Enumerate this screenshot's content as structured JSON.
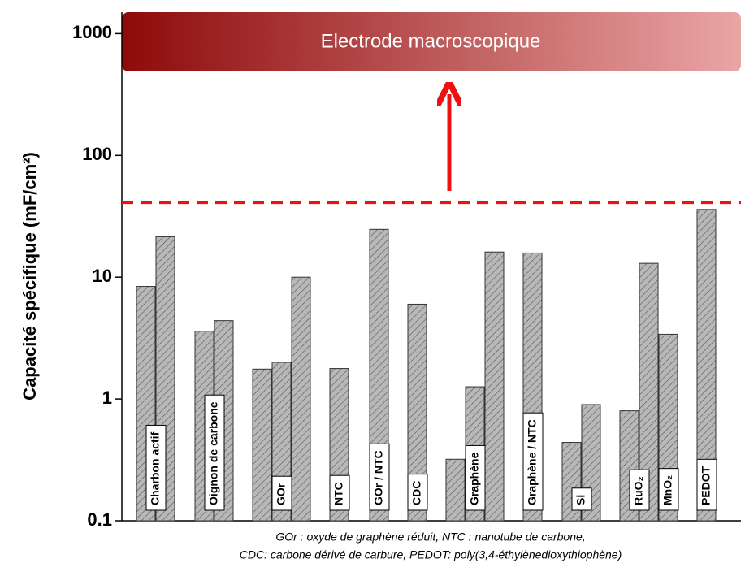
{
  "chart_data": {
    "type": "bar",
    "annotation": "Electrode macroscopique",
    "ylabel": "Capacité spécifique (mF/cm²)",
    "footnote": [
      "GOr : oxyde de graphène réduit, NTC : nanotube de carbone,",
      "CDC: carbone dérivé de carbure, PEDOT:  poly(3,4-éthylènedioxythiophène)"
    ],
    "categories": [
      "Charbon actif",
      "Oignon de carbone",
      "GOr",
      "NTC",
      "GOr / NTC",
      "CDC",
      "Graphène",
      "Graphène / NTC",
      "Si",
      "RuO₂",
      "MnO₂",
      "PEDOT"
    ],
    "values": [
      [
        8.4,
        21.5
      ],
      [
        3.6,
        4.4
      ],
      [
        1.76,
        2.0,
        10
      ],
      [
        1.78
      ],
      [
        24.7
      ],
      [
        6.0
      ],
      [
        0.32,
        1.26,
        16.1
      ],
      [
        15.8
      ],
      [
        0.44,
        0.9
      ],
      [
        0.8,
        13
      ],
      [
        3.4
      ],
      [
        36
      ]
    ],
    "color": "#b8b8b8",
    "threshold": 41,
    "threshold_color": "#ee1111",
    "log_scale": true,
    "ylim": [
      0.1,
      1500
    ],
    "yticks": [
      0.1,
      1,
      10,
      100,
      1000
    ]
  }
}
